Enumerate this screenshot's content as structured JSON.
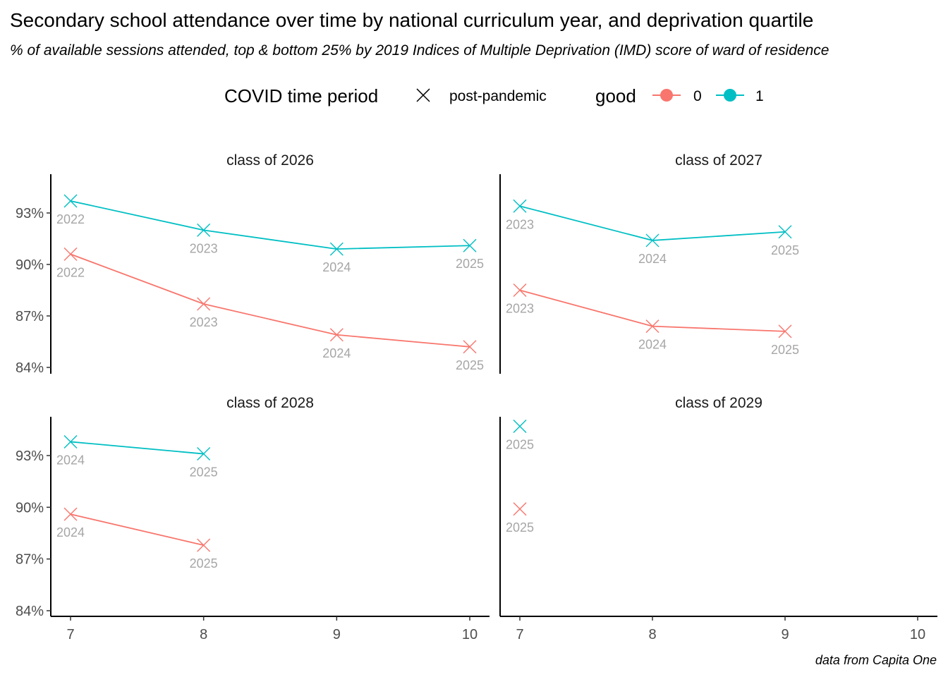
{
  "colors": {
    "group0": "#F8766D",
    "group1": "#00BFC4",
    "axis": "#000000",
    "label": "#a6a6a6"
  },
  "chart_data": {
    "type": "line",
    "title": "Secondary school attendance over time by national curriculum year, and deprivation quartile",
    "subtitle": "% of available sessions attended, top & bottom 25% by 2019 Indices of Multiple Deprivation (IMD) score of ward of residence",
    "caption": "data from Capita One",
    "legend": {
      "position": "top",
      "shape_title": "COVID time period",
      "shape_entries": [
        {
          "label": "post-pandemic",
          "marker": "x-icon"
        }
      ],
      "color_title": "good",
      "color_entries": [
        {
          "label": "0",
          "color": "#F8766D"
        },
        {
          "label": "1",
          "color": "#00BFC4"
        }
      ]
    },
    "x_ticks": [
      "7",
      "8",
      "9",
      "10"
    ],
    "xlim": [
      7,
      10
    ],
    "y_ticks": [
      "84%",
      "87%",
      "90%",
      "93%"
    ],
    "ylim": [
      84,
      95
    ],
    "grid": false,
    "panels": [
      {
        "label": "class of 2026",
        "series": [
          {
            "good": "1",
            "points": [
              {
                "x": 7,
                "y": 93.7,
                "label": "2022"
              },
              {
                "x": 8,
                "y": 92.0,
                "label": "2023"
              },
              {
                "x": 9,
                "y": 90.9,
                "label": "2024"
              },
              {
                "x": 10,
                "y": 91.1,
                "label": "2025"
              }
            ]
          },
          {
            "good": "0",
            "points": [
              {
                "x": 7,
                "y": 90.6,
                "label": "2022"
              },
              {
                "x": 8,
                "y": 87.7,
                "label": "2023"
              },
              {
                "x": 9,
                "y": 85.9,
                "label": "2024"
              },
              {
                "x": 10,
                "y": 85.2,
                "label": "2025"
              }
            ]
          }
        ]
      },
      {
        "label": "class of 2027",
        "series": [
          {
            "good": "1",
            "points": [
              {
                "x": 7,
                "y": 93.4,
                "label": "2023"
              },
              {
                "x": 8,
                "y": 91.4,
                "label": "2024"
              },
              {
                "x": 9,
                "y": 91.9,
                "label": "2025"
              }
            ]
          },
          {
            "good": "0",
            "points": [
              {
                "x": 7,
                "y": 88.5,
                "label": "2023"
              },
              {
                "x": 8,
                "y": 86.4,
                "label": "2024"
              },
              {
                "x": 9,
                "y": 86.1,
                "label": "2025"
              }
            ]
          }
        ]
      },
      {
        "label": "class of 2028",
        "series": [
          {
            "good": "1",
            "points": [
              {
                "x": 7,
                "y": 93.8,
                "label": "2024"
              },
              {
                "x": 8,
                "y": 93.1,
                "label": "2025"
              }
            ]
          },
          {
            "good": "0",
            "points": [
              {
                "x": 7,
                "y": 89.6,
                "label": "2024"
              },
              {
                "x": 8,
                "y": 87.8,
                "label": "2025"
              }
            ]
          }
        ]
      },
      {
        "label": "class of 2029",
        "series": [
          {
            "good": "1",
            "points": [
              {
                "x": 7,
                "y": 94.7,
                "label": "2025"
              }
            ]
          },
          {
            "good": "0",
            "points": [
              {
                "x": 7,
                "y": 89.9,
                "label": "2025"
              }
            ]
          }
        ]
      }
    ]
  }
}
